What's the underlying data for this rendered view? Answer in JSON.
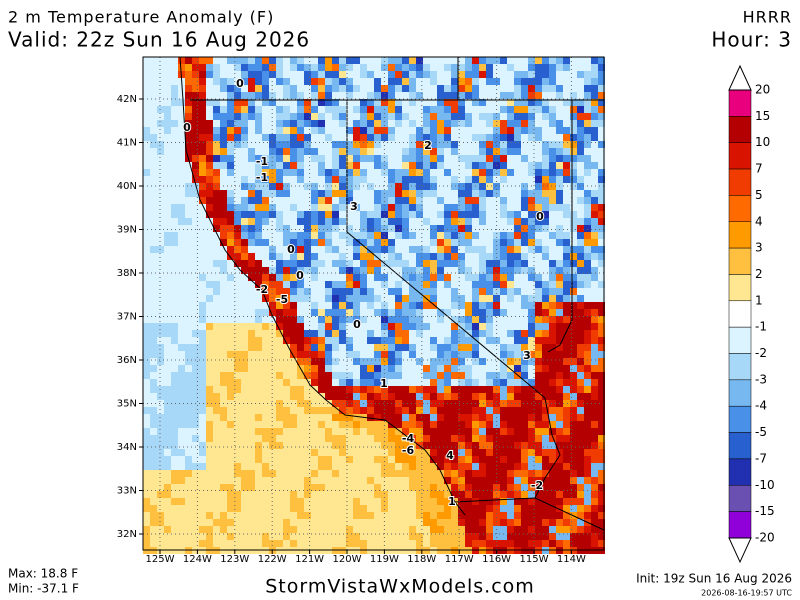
{
  "header": {
    "title": "2 m Temperature Anomaly (F)",
    "valid": "Valid: 22z Sun 16 Aug 2026",
    "model": "HRRR",
    "hour": "Hour: 3"
  },
  "map": {
    "lat_labels": [
      "42N",
      "41N",
      "40N",
      "39N",
      "38N",
      "37N",
      "36N",
      "35N",
      "34N",
      "33N",
      "32N"
    ],
    "lon_labels": [
      "125W",
      "124W",
      "123W",
      "122W",
      "121W",
      "120W",
      "119W",
      "118W",
      "117W",
      "116W",
      "115W",
      "114W"
    ],
    "contour_labels": [
      0,
      0,
      -1,
      -1,
      2,
      3,
      0,
      0,
      0,
      -2,
      -5,
      0,
      3,
      1,
      -4,
      -6,
      4,
      -2,
      1
    ]
  },
  "legend": {
    "levels": [
      20,
      15,
      10,
      7,
      5,
      4,
      3,
      2,
      1,
      -1,
      -2,
      -3,
      -4,
      -5,
      -7,
      -10,
      -15,
      -20
    ],
    "colors": [
      "#e8007c",
      "#b40000",
      "#d81400",
      "#f03c00",
      "#ff6a00",
      "#ff9a00",
      "#ffc040",
      "#ffe690",
      "#ffffff",
      "#dcf4ff",
      "#a8d8f8",
      "#78b8f0",
      "#4890e8",
      "#2860d0",
      "#2030b0",
      "#6a50b0",
      "#9000d8"
    ]
  },
  "footer": {
    "max": "Max: 18.8 F",
    "min": "Min: -37.1 F",
    "site": "StormVistaWxModels.com",
    "init": "Init: 19z Sun 16 Aug 2026",
    "stamp": "2026-08-16-19:57 UTC"
  }
}
